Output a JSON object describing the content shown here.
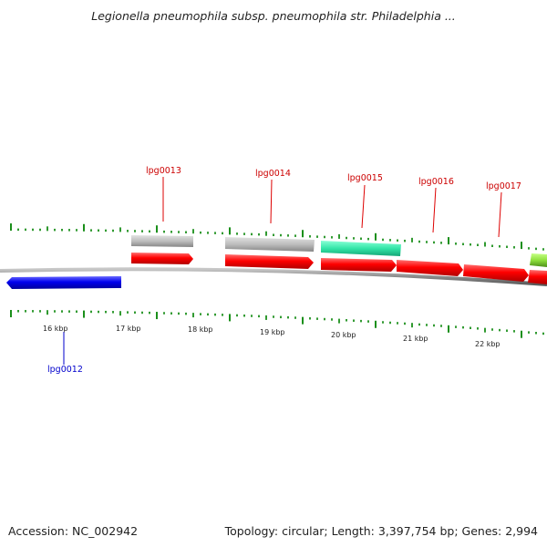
{
  "title": "Legionella pneumophila subsp. pneumophila str. Philadelphia ...",
  "footer": {
    "accession": "Accession: NC_002942",
    "stats": "Topology: circular; Length: 3,397,754 bp; Genes: 2,994"
  },
  "colors": {
    "tick": "#1a8f1a",
    "backbone": "#8a8a8a",
    "forward_gene": "#ff0000",
    "reverse_gene": "#0000ee",
    "gray_feature": "#bdbdbd",
    "teal_feature": "#33e6a8",
    "lime_feature": "#8ee03c",
    "forward_label": "#cc0000",
    "reverse_label": "#0000cc"
  },
  "scale_labels": [
    "16 kbp",
    "17 kbp",
    "18 kbp",
    "19 kbp",
    "20 kbp",
    "21 kbp",
    "22 kbp"
  ],
  "gene_labels": {
    "lpg0012": "lpg0012",
    "lpg0013": "lpg0013",
    "lpg0014": "lpg0014",
    "lpg0015": "lpg0015",
    "lpg0016": "lpg0016",
    "lpg0017": "lpg0017"
  }
}
